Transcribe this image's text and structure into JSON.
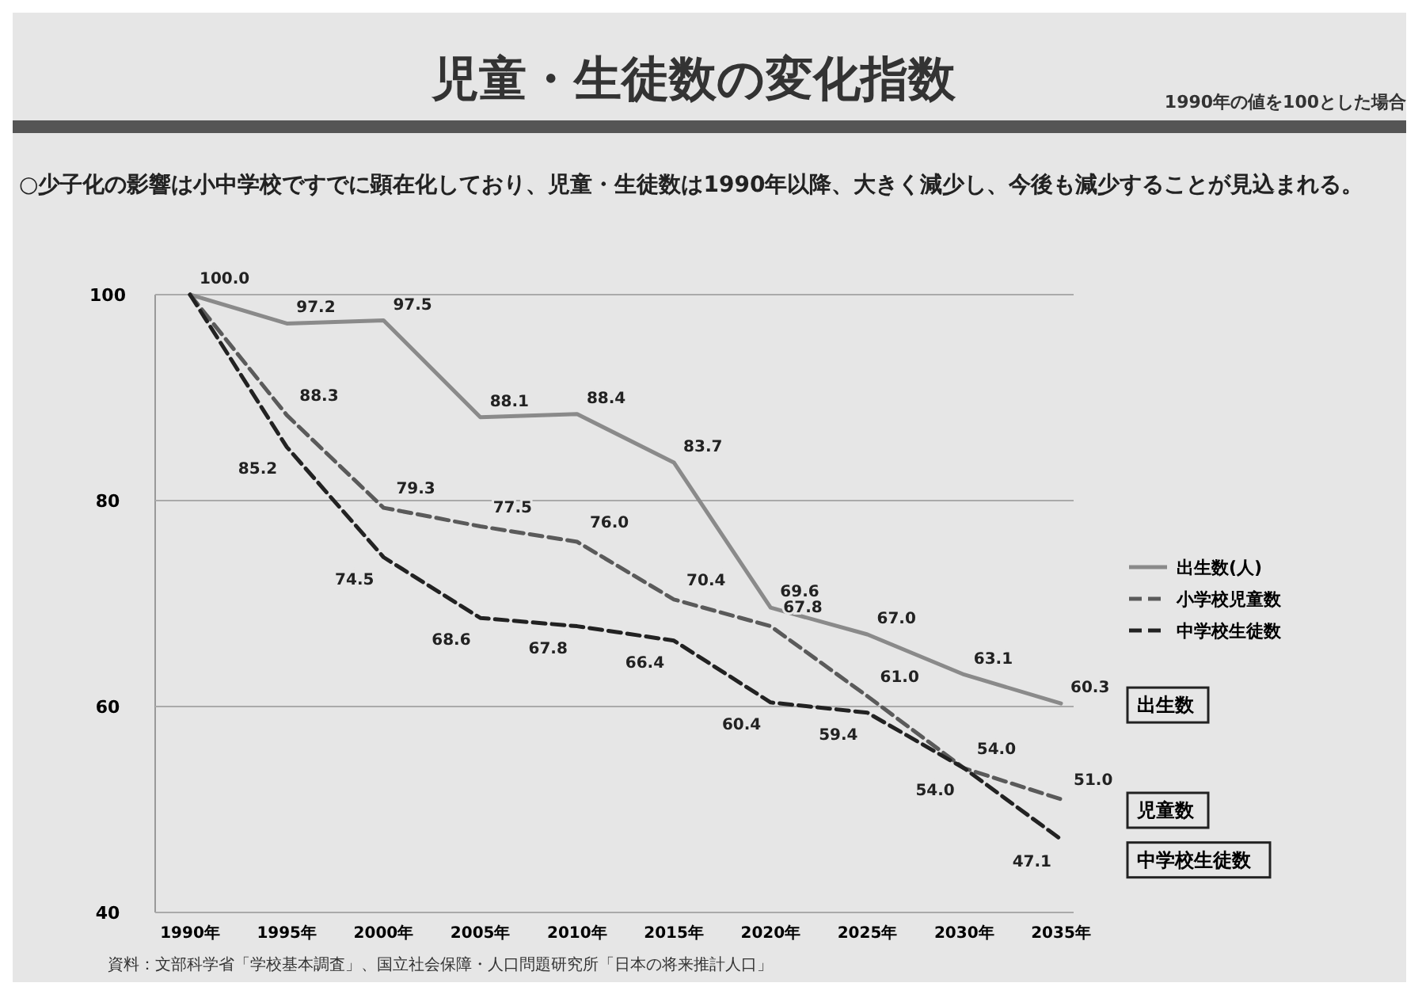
{
  "chart_data": {
    "type": "line",
    "title": "児童・生徒数の変化指数",
    "subtitle": "1990年の値を100とした場合",
    "annotations": [
      "○少子化の影響は小中学校ですでに顕在化しており、児童・生徒数は1990年以降、大きく減少し、今後も減少することが見込まれる。",
      "出生数",
      "児童数",
      "中学校生徒数",
      "資料：文部科学省「学校基本調査」、国立社会保障・人口問題研究所「日本の将来推計人口」"
    ],
    "categories": [
      "1990年",
      "1995年",
      "2000年",
      "2005年",
      "2010年",
      "2015年",
      "2020年",
      "2025年",
      "2030年",
      "2035年"
    ],
    "series": [
      {
        "name": "出生数(人)",
        "color": "#8a8a8a",
        "line_style": "solid",
        "values": [
          100,
          97.2,
          97.5,
          88.1,
          88.4,
          83.7,
          69.6,
          67.0,
          63.1,
          60.3
        ],
        "value_labels": [
          "100.0",
          "97.2",
          "97.5",
          "88.1",
          "88.4",
          "83.7",
          "69.6",
          "67.0",
          "63.1",
          "60.3"
        ]
      },
      {
        "name": "小学校児童数",
        "color": "#5a5a5a",
        "line_style": "dashed",
        "values": [
          100,
          88.3,
          79.3,
          77.5,
          76.0,
          70.4,
          67.8,
          61.0,
          54.0,
          51.0
        ],
        "value_labels": [
          null,
          "88.3",
          "79.3",
          "77.5",
          "76.0",
          "70.4",
          "67.8",
          "61.0",
          "54.0",
          "51.0"
        ]
      },
      {
        "name": "中学校生徒数",
        "color": "#222222",
        "line_style": "dashed",
        "values": [
          100,
          85.2,
          74.5,
          68.6,
          67.8,
          66.4,
          60.4,
          59.4,
          54.0,
          47.1
        ],
        "value_labels": [
          null,
          "85.2",
          "74.5",
          "68.6",
          "67.8",
          "66.4",
          "60.4",
          "59.4",
          "54.0",
          "47.1"
        ]
      }
    ],
    "ylim": [
      40,
      100
    ],
    "yticks": [
      40,
      60,
      80,
      100
    ],
    "grid": "y",
    "legend": "right",
    "marker": "none"
  }
}
